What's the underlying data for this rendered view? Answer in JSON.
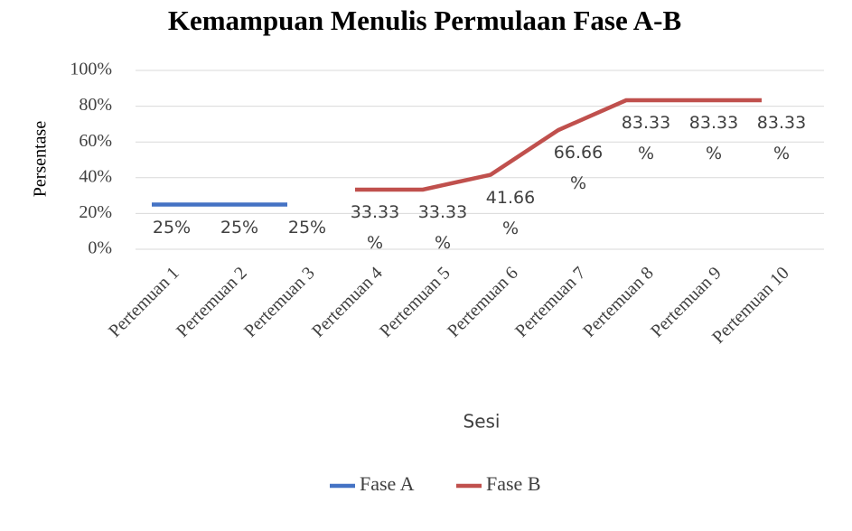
{
  "chart_data": {
    "type": "line",
    "title": "Kemampuan Menulis Permulaan Fase A-B",
    "x_label": "Sesi",
    "y_label": "Persentase",
    "categories": [
      "Pertemuan 1",
      "Pertemuan 2",
      "Pertemuan 3",
      "Pertemuan 4",
      "Pertemuan 5",
      "Pertemuan 6",
      "Pertemuan 7",
      "Pertemuan 8",
      "Pertemuan 9",
      "Pertemuan 10"
    ],
    "series": [
      {
        "name": "Fase A",
        "color": "#4472c4",
        "values": [
          25,
          25,
          25,
          null,
          null,
          null,
          null,
          null,
          null,
          null
        ],
        "value_labels": [
          "25%",
          "25%",
          "25%",
          null,
          null,
          null,
          null,
          null,
          null,
          null
        ]
      },
      {
        "name": "Fase B",
        "color": "#c0504d",
        "values": [
          null,
          null,
          null,
          33.33,
          33.33,
          41.66,
          66.66,
          83.33,
          83.33,
          83.33
        ],
        "value_labels": [
          null,
          null,
          null,
          "33.33 %",
          "33.33 %",
          "41.66 %",
          "66.66 %",
          "83.33 %",
          "83.33 %",
          "83.33 %"
        ]
      }
    ],
    "ylim": [
      0,
      100
    ],
    "yticks": [
      {
        "value": 0,
        "label": "0%"
      },
      {
        "value": 20,
        "label": "20%"
      },
      {
        "value": 40,
        "label": "40%"
      },
      {
        "value": 60,
        "label": "60%"
      },
      {
        "value": 80,
        "label": "80%"
      },
      {
        "value": 100,
        "label": "100%"
      }
    ],
    "grid": true,
    "legend": "bottom"
  }
}
